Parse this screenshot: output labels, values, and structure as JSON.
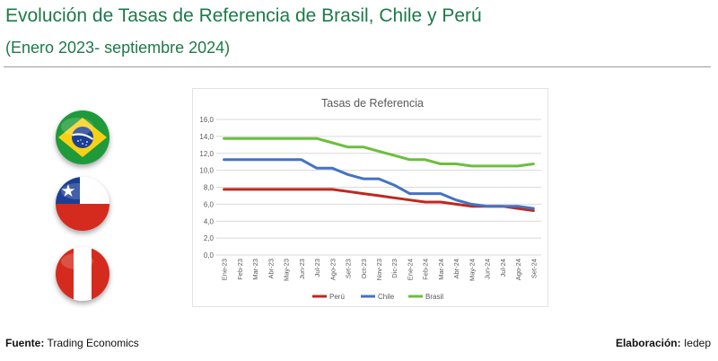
{
  "header": {
    "title": "Evolución de Tasas de Referencia de Brasil, Chile y Perú",
    "subtitle": "(Enero 2023- septiembre 2024)"
  },
  "flags": [
    {
      "country": "Brasil",
      "icon": "brazil-flag-icon"
    },
    {
      "country": "Chile",
      "icon": "chile-flag-icon"
    },
    {
      "country": "Perú",
      "icon": "peru-flag-icon"
    }
  ],
  "colors": {
    "title_green": "#1d7a48",
    "peru": "#c0271f",
    "chile": "#4472c4",
    "brasil": "#6abf3b",
    "grid": "#d9d9d9",
    "axis_text": "#595959"
  },
  "footer": {
    "source_label": "Fuente:",
    "source_value": "Trading Economics",
    "credit_label": "Elaboración:",
    "credit_value": "Iedep"
  },
  "chart_data": {
    "type": "line",
    "title": "Tasas de Referencia",
    "xlabel": "",
    "ylabel": "",
    "ylim": [
      0,
      16
    ],
    "ytick_step": 2,
    "ytick_labels": [
      "0,0",
      "2,0",
      "4,0",
      "6,0",
      "8,0",
      "10,0",
      "12,0",
      "14,0",
      "16,0"
    ],
    "grid": true,
    "legend_position": "bottom",
    "categories": [
      "Ene-23",
      "Feb-23",
      "Mar-23",
      "Abr-23",
      "May-23",
      "Jun-23",
      "Jul-23",
      "Ago-23",
      "Set-23",
      "Oct-23",
      "Nov-23",
      "Dic-23",
      "Ene-24",
      "Feb-24",
      "Mar-24",
      "Abr-24",
      "May-24",
      "Jun-24",
      "Jul-24",
      "Ago-24",
      "Set-24"
    ],
    "series": [
      {
        "name": "Perú",
        "color": "#c0271f",
        "values": [
          7.75,
          7.75,
          7.75,
          7.75,
          7.75,
          7.75,
          7.75,
          7.75,
          7.5,
          7.25,
          7.0,
          6.75,
          6.5,
          6.25,
          6.25,
          6.0,
          5.75,
          5.75,
          5.75,
          5.5,
          5.25
        ]
      },
      {
        "name": "Chile",
        "color": "#4472c4",
        "values": [
          11.25,
          11.25,
          11.25,
          11.25,
          11.25,
          11.25,
          10.25,
          10.25,
          9.5,
          9.0,
          9.0,
          8.25,
          7.25,
          7.25,
          7.25,
          6.5,
          6.0,
          5.75,
          5.75,
          5.75,
          5.5
        ]
      },
      {
        "name": "Brasil",
        "color": "#6abf3b",
        "values": [
          13.75,
          13.75,
          13.75,
          13.75,
          13.75,
          13.75,
          13.75,
          13.25,
          12.75,
          12.75,
          12.25,
          11.75,
          11.25,
          11.25,
          10.75,
          10.75,
          10.5,
          10.5,
          10.5,
          10.5,
          10.75
        ]
      }
    ]
  }
}
